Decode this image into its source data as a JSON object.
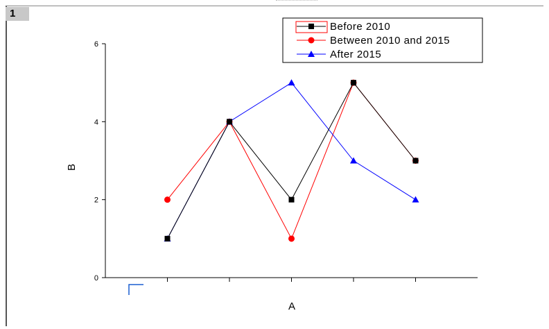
{
  "window": {
    "layer_label": "1"
  },
  "chart_data": {
    "type": "line",
    "title": "",
    "xlabel": "A",
    "ylabel": "B",
    "x": [
      1,
      2,
      3,
      4,
      5
    ],
    "xlim": [
      0,
      6
    ],
    "ylim": [
      0,
      6
    ],
    "y_ticks": [
      "0",
      "2",
      "4",
      "6"
    ],
    "grid": false,
    "legend_position": "top-right",
    "series": [
      {
        "name": "Before 2010",
        "values": [
          1,
          4,
          2,
          5,
          3
        ],
        "color": "#000000",
        "marker": "square",
        "marker_color": "#000000"
      },
      {
        "name": "Between 2010 and 2015",
        "values": [
          2,
          4,
          1,
          5,
          3
        ],
        "color": "#ff0000",
        "marker": "circle",
        "marker_color": "#ff0000"
      },
      {
        "name": "After 2015",
        "values": [
          1,
          4,
          5,
          3,
          2
        ],
        "color": "#0000ff",
        "marker": "triangle",
        "marker_color": "#0000ff"
      }
    ]
  }
}
